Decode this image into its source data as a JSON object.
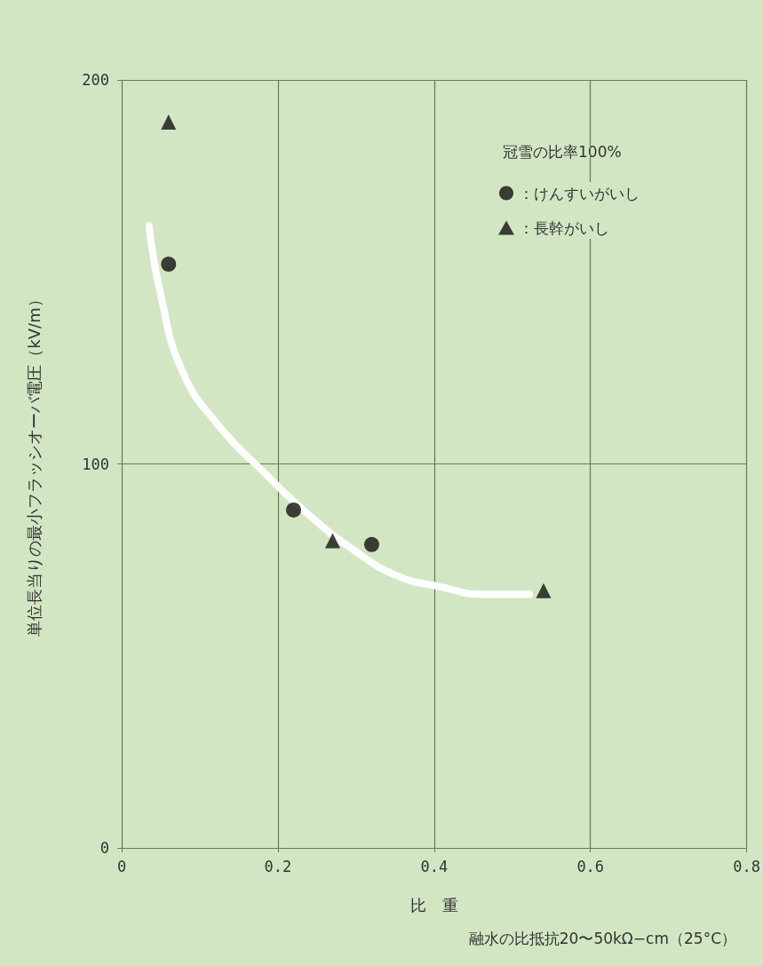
{
  "chart_data": {
    "type": "scatter",
    "xlabel": "比　重",
    "ylabel": "単位長当りの最小フラッシオーバ電圧（kV/m）",
    "legend_title": "冠雪の比率100%",
    "annotations": [
      "融水の比抵抗20〜50kΩ−cm（25°C）"
    ],
    "series": [
      {
        "name": "：けんすいがいし",
        "marker": "circle",
        "color": "#111111",
        "x": [
          0.06,
          0.22,
          0.32
        ],
        "values": [
          152,
          88,
          79
        ]
      },
      {
        "name": "：長幹がいし",
        "marker": "triangle",
        "color": "#111111",
        "x": [
          0.06,
          0.27,
          0.54
        ],
        "values": [
          189,
          80,
          67
        ]
      },
      {
        "type": "line",
        "marker": "none",
        "color": "#ffffff",
        "x": [
          0.035,
          0.05,
          0.078,
          0.124,
          0.181,
          0.238,
          0.294,
          0.351,
          0.408,
          0.465,
          0.522
        ],
        "values": [
          162,
          144,
          124,
          110,
          98,
          87,
          78,
          71,
          68,
          66,
          66
        ]
      }
    ],
    "xlim": [
      0,
      0.8
    ],
    "xticks": [
      0,
      0.2,
      0.4,
      0.6,
      0.8
    ],
    "ylim": [
      0,
      200
    ],
    "yticks": [
      0,
      100,
      200
    ],
    "grid": true,
    "legend": "top right"
  }
}
